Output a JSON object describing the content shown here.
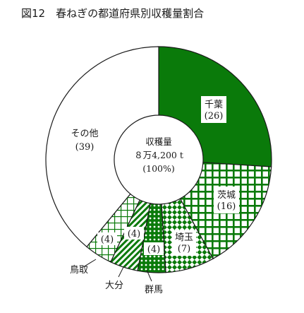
{
  "chart_data": {
    "type": "pie",
    "title": "図12　春ねぎの都道府県別収穫量割合",
    "center": {
      "label": "収穫量",
      "value": "８万4,200 t",
      "percent": "(100%)"
    },
    "slices": [
      {
        "name": "千葉",
        "value": 26,
        "value_label": "(26)",
        "fill": "solid",
        "color": "#0a7a0a"
      },
      {
        "name": "茨城",
        "value": 16,
        "value_label": "(16)",
        "fill": "grid",
        "color": "#0a7a0a"
      },
      {
        "name": "埼玉",
        "value": 7,
        "value_label": "(7)",
        "fill": "checker",
        "color": "#0a7a0a"
      },
      {
        "name": "群馬",
        "value": 4,
        "value_label": "(4)",
        "fill": "dots",
        "color": "#0a7a0a"
      },
      {
        "name": "大分",
        "value": 4,
        "value_label": "(4)",
        "fill": "diagonal",
        "color": "#0a7a0a"
      },
      {
        "name": "鳥取",
        "value": 4,
        "value_label": "(4)",
        "fill": "grid-light",
        "color": "#0a7a0a"
      },
      {
        "name": "その他",
        "value": 39,
        "value_label": "(39)",
        "fill": "white",
        "color": "#ffffff"
      }
    ]
  }
}
